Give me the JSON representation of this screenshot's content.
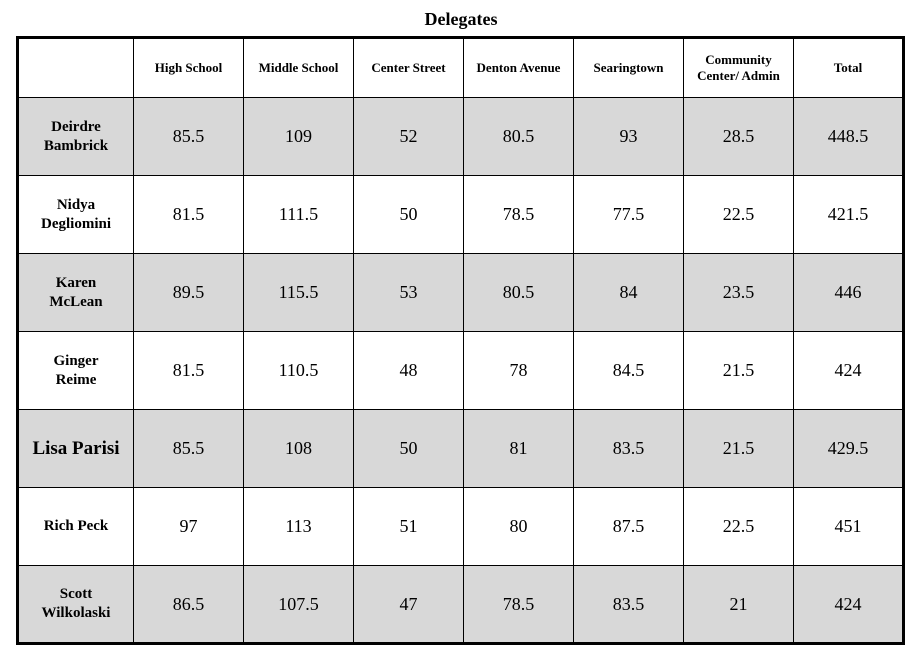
{
  "title": "Delegates",
  "chart_data": {
    "type": "table",
    "title": "Delegates",
    "columns": [
      "",
      "High School",
      "Middle School",
      "Center Street",
      "Denton Avenue",
      "Searingtown",
      "Community Center/ Admin",
      "Total"
    ],
    "rows": [
      {
        "name": "Deirdre Bambrick",
        "values": [
          "85.5",
          "109",
          "52",
          "80.5",
          "93",
          "28.5",
          "448.5"
        ]
      },
      {
        "name": "Nidya Degliomini",
        "values": [
          "81.5",
          "111.5",
          "50",
          "78.5",
          "77.5",
          "22.5",
          "421.5"
        ]
      },
      {
        "name": "Karen McLean",
        "values": [
          "89.5",
          "115.5",
          "53",
          "80.5",
          "84",
          "23.5",
          "446"
        ]
      },
      {
        "name": "Ginger Reime",
        "values": [
          "81.5",
          "110.5",
          "48",
          "78",
          "84.5",
          "21.5",
          "424"
        ]
      },
      {
        "name": "Lisa Parisi",
        "values": [
          "85.5",
          "108",
          "50",
          "81",
          "83.5",
          "21.5",
          "429.5"
        ]
      },
      {
        "name": "Rich Peck",
        "values": [
          "97",
          "113",
          "51",
          "80",
          "87.5",
          "22.5",
          "451"
        ]
      },
      {
        "name": "Scott Wilkolaski",
        "values": [
          "86.5",
          "107.5",
          "47",
          "78.5",
          "83.5",
          "21",
          "424"
        ]
      }
    ],
    "layout": {
      "row_shading": "alternating, first data row shaded",
      "grid": "on"
    }
  },
  "colors": {
    "row_shade": "#d8d8d8",
    "border": "#000000",
    "background": "#ffffff"
  }
}
